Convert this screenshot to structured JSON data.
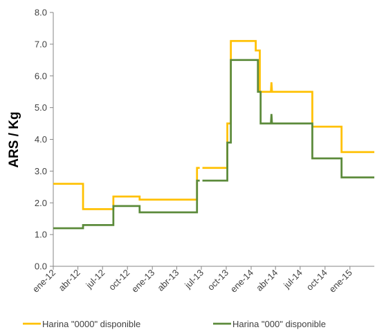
{
  "chart_data": {
    "type": "line",
    "title": "",
    "xlabel": "",
    "ylabel": "ARS / Kg",
    "ylim": [
      0,
      8
    ],
    "yticks": [
      "0.0",
      "1.0",
      "2.0",
      "3.0",
      "4.0",
      "5.0",
      "6.0",
      "7.0",
      "8.0"
    ],
    "xlim": [
      "2012-01-01",
      "2015-04-01"
    ],
    "xticks": [
      {
        "date": "2012-01-01",
        "label": "ene-12"
      },
      {
        "date": "2012-04-01",
        "label": "abr-12"
      },
      {
        "date": "2012-07-01",
        "label": "jul-12"
      },
      {
        "date": "2012-10-01",
        "label": "oct-12"
      },
      {
        "date": "2013-01-01",
        "label": "ene-13"
      },
      {
        "date": "2013-04-01",
        "label": "abr-13"
      },
      {
        "date": "2013-07-01",
        "label": "jul-13"
      },
      {
        "date": "2013-10-01",
        "label": "oct-13"
      },
      {
        "date": "2014-01-01",
        "label": "ene-14"
      },
      {
        "date": "2014-04-01",
        "label": "abr-14"
      },
      {
        "date": "2014-07-01",
        "label": "jul-14"
      },
      {
        "date": "2014-10-01",
        "label": "oct-14"
      },
      {
        "date": "2015-01-01",
        "label": "ene-15"
      }
    ],
    "grid": false,
    "legend_position": "bottom",
    "series": [
      {
        "name": "Harina \"0000\" disponible",
        "color": "#FFC000",
        "points": [
          [
            "2012-01-01",
            2.6
          ],
          [
            "2012-04-20",
            2.6
          ],
          [
            "2012-04-20",
            1.8
          ],
          [
            "2012-08-10",
            1.8
          ],
          [
            "2012-08-10",
            2.2
          ],
          [
            "2012-11-15",
            2.2
          ],
          [
            "2012-11-15",
            2.1
          ],
          [
            "2013-06-15",
            2.1
          ],
          [
            "2013-06-15",
            3.1
          ],
          [
            "2013-06-25",
            3.1
          ],
          [
            null,
            null
          ],
          [
            "2013-07-05",
            3.1
          ],
          [
            "2013-10-05",
            3.1
          ],
          [
            "2013-10-05",
            4.5
          ],
          [
            "2013-10-18",
            4.5
          ],
          [
            "2013-10-18",
            7.1
          ],
          [
            "2014-01-18",
            7.1
          ],
          [
            "2014-01-18",
            6.8
          ],
          [
            "2014-02-02",
            6.8
          ],
          [
            "2014-02-02",
            5.5
          ],
          [
            "2014-03-15",
            5.5
          ],
          [
            "2014-03-17",
            5.8
          ],
          [
            "2014-03-19",
            5.5
          ],
          [
            "2014-08-15",
            5.5
          ],
          [
            "2014-08-15",
            4.4
          ],
          [
            "2014-12-01",
            4.4
          ],
          [
            "2014-12-01",
            3.6
          ],
          [
            "2015-04-01",
            3.6
          ]
        ]
      },
      {
        "name": "Harina \"000\" disponible",
        "color": "#5B8A3A",
        "points": [
          [
            "2012-01-01",
            1.2
          ],
          [
            "2012-04-20",
            1.2
          ],
          [
            "2012-04-20",
            1.3
          ],
          [
            "2012-08-10",
            1.3
          ],
          [
            "2012-08-10",
            1.9
          ],
          [
            "2012-11-15",
            1.9
          ],
          [
            "2012-11-15",
            1.7
          ],
          [
            "2013-06-15",
            1.7
          ],
          [
            "2013-06-15",
            2.7
          ],
          [
            "2013-06-25",
            2.7
          ],
          [
            null,
            null
          ],
          [
            "2013-07-05",
            2.7
          ],
          [
            "2013-10-05",
            2.7
          ],
          [
            "2013-10-05",
            3.9
          ],
          [
            "2013-10-18",
            3.9
          ],
          [
            "2013-10-18",
            6.5
          ],
          [
            "2014-01-26",
            6.5
          ],
          [
            "2014-01-26",
            5.5
          ],
          [
            "2014-02-05",
            5.5
          ],
          [
            "2014-02-05",
            4.5
          ],
          [
            "2014-03-15",
            4.5
          ],
          [
            "2014-03-17",
            4.8
          ],
          [
            "2014-03-19",
            4.5
          ],
          [
            "2014-08-15",
            4.5
          ],
          [
            "2014-08-15",
            3.4
          ],
          [
            "2014-12-01",
            3.4
          ],
          [
            "2014-12-01",
            2.8
          ],
          [
            "2015-04-01",
            2.8
          ]
        ]
      }
    ]
  }
}
